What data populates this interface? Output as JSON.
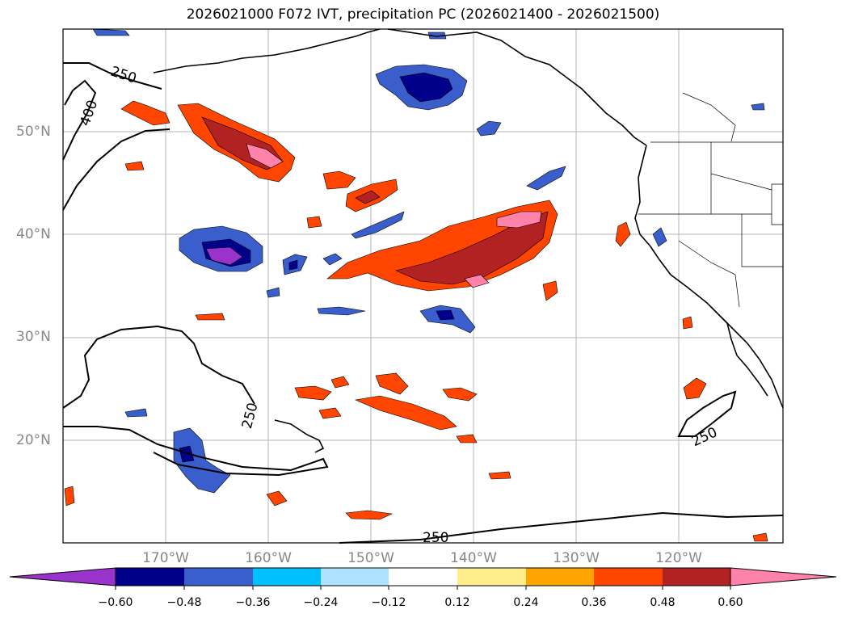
{
  "title": "2026021000 F072 IVT, precipitation PC (2026021400 - 2026021500)",
  "lat_labels": [
    "50°N",
    "40°N",
    "30°N",
    "20°N"
  ],
  "lon_labels": [
    "170°W",
    "160°W",
    "150°W",
    "140°W",
    "130°W",
    "120°W"
  ],
  "contour_labels": [
    "250",
    "400",
    "250",
    "250",
    "250"
  ],
  "colorbar": {
    "ticks": [
      "−0.60",
      "−0.48",
      "−0.36",
      "−0.24",
      "−0.12",
      "0.12",
      "0.24",
      "0.36",
      "0.48",
      "0.60"
    ],
    "colors": [
      "#9933cc",
      "#00008b",
      "#3a5fcd",
      "#00bfff",
      "#b0e2ff",
      "#ffffff",
      "#ffec8b",
      "#ffa500",
      "#ff4500",
      "#b22222",
      "#ff82ab"
    ]
  }
}
